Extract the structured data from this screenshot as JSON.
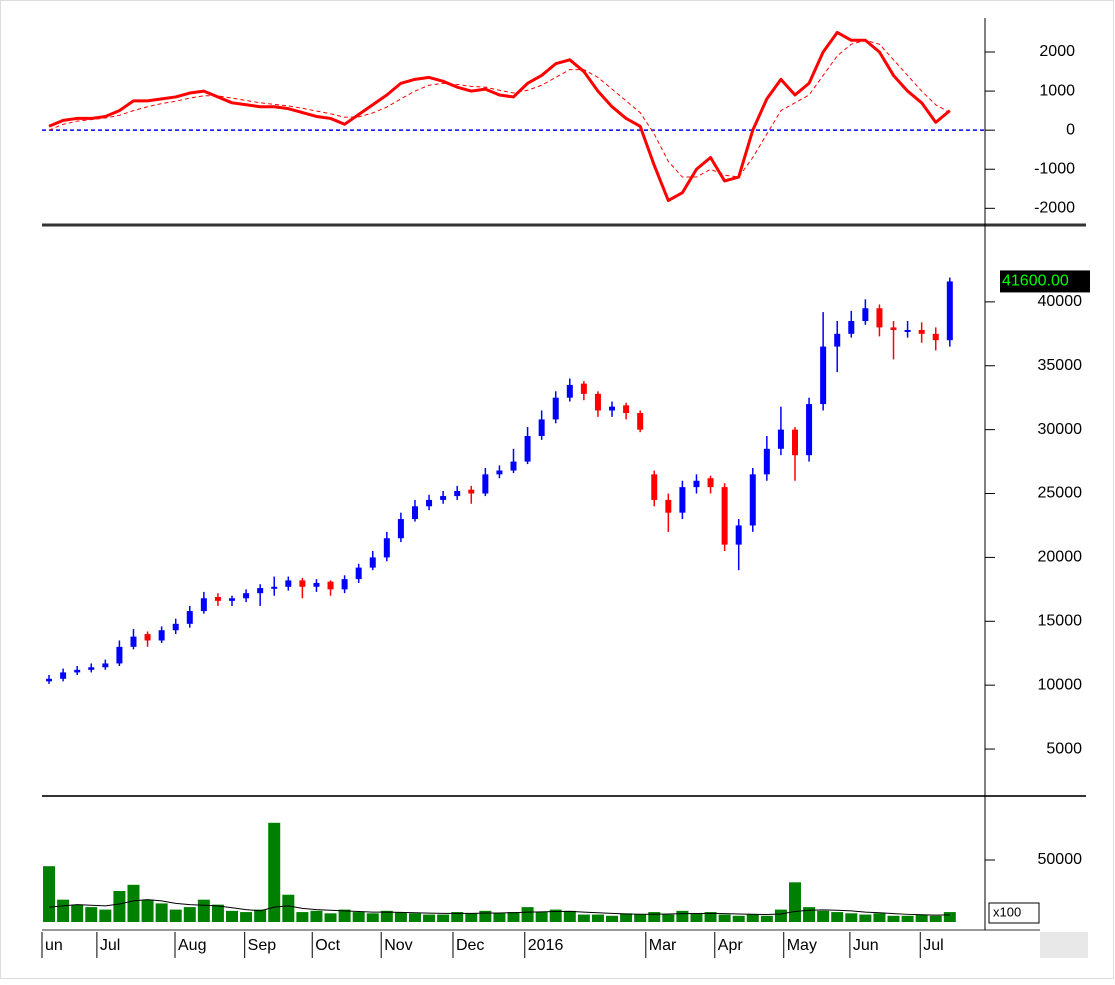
{
  "chart_data": [
    {
      "type": "line",
      "ylim": [
        -2350,
        2870
      ],
      "yticks": [
        -2000,
        -1000,
        0,
        1000,
        2000
      ],
      "hline": 0,
      "hline_color": "#0000ff",
      "series": [
        {
          "color": "#ff0000",
          "style": "solid",
          "values": [
            100,
            250,
            300,
            300,
            350,
            500,
            750,
            750,
            800,
            850,
            950,
            1000,
            850,
            700,
            650,
            600,
            600,
            550,
            450,
            350,
            300,
            150,
            400,
            650,
            900,
            1200,
            1300,
            1350,
            1250,
            1100,
            1000,
            1050,
            900,
            850,
            1200,
            1400,
            1700,
            1800,
            1500,
            1000,
            600,
            300,
            100,
            -900,
            -1800,
            -1600,
            -1000,
            -700,
            -1300,
            -1200,
            0,
            800,
            1300,
            900,
            1200,
            2000,
            2500,
            2300,
            2300,
            2000,
            1400,
            1000,
            700,
            200,
            500
          ]
        },
        {
          "color": "#ff0000",
          "style": "dashed",
          "values": [
            0,
            150,
            230,
            270,
            310,
            380,
            500,
            600,
            680,
            740,
            820,
            880,
            880,
            820,
            760,
            700,
            660,
            620,
            560,
            490,
            420,
            330,
            340,
            440,
            590,
            800,
            1000,
            1150,
            1200,
            1170,
            1120,
            1100,
            1020,
            950,
            1020,
            1150,
            1350,
            1550,
            1550,
            1350,
            1050,
            750,
            450,
            -100,
            -800,
            -1200,
            -1200,
            -1000,
            -1150,
            -1200,
            -700,
            -100,
            500,
            700,
            900,
            1400,
            1900,
            2200,
            2300,
            2200,
            1800,
            1400,
            1000,
            650,
            450
          ]
        }
      ]
    },
    {
      "type": "candlestick",
      "ylim": [
        1560,
        45860
      ],
      "yticks": [
        5000,
        10000,
        15000,
        20000,
        25000,
        30000,
        35000,
        40000
      ],
      "up_color": "#0000ff",
      "down_color": "#ff0000",
      "last_label": {
        "value": 41600,
        "label": "41600.00"
      },
      "open": [
        10300,
        10500,
        11000,
        11200,
        11400,
        11700,
        13000,
        14000,
        13500,
        14300,
        14800,
        15800,
        16900,
        16600,
        16800,
        17200,
        17600,
        17700,
        18200,
        17700,
        18100,
        17500,
        18300,
        19200,
        20000,
        21500,
        23000,
        24000,
        24500,
        24800,
        25300,
        25000,
        26500,
        26800,
        27500,
        29500,
        30800,
        32500,
        33600,
        32800,
        31500,
        31900,
        31300,
        26500,
        24500,
        23500,
        25500,
        26200,
        25500,
        21000,
        22500,
        26500,
        28500,
        30000,
        28000,
        32000,
        36500,
        37500,
        38500,
        39500,
        38000,
        37800,
        37800,
        37500,
        37000
      ],
      "high": [
        10800,
        11300,
        11500,
        11700,
        12000,
        13500,
        14400,
        14200,
        14600,
        15200,
        16200,
        17300,
        17200,
        17000,
        17500,
        17900,
        18500,
        18500,
        18400,
        18300,
        18200,
        18600,
        19500,
        20500,
        22000,
        23500,
        24500,
        24900,
        25200,
        25600,
        25600,
        27000,
        27200,
        28500,
        30200,
        31500,
        33000,
        34000,
        33800,
        33000,
        32200,
        32100,
        31500,
        26800,
        25000,
        26000,
        26500,
        26400,
        25800,
        23000,
        27000,
        29500,
        31800,
        30200,
        32500,
        39200,
        38500,
        39300,
        40200,
        39800,
        38500,
        38500,
        38400,
        38000,
        41900
      ],
      "low": [
        10100,
        10300,
        10800,
        11000,
        11200,
        11500,
        12800,
        13000,
        13300,
        14000,
        14500,
        15600,
        16200,
        16200,
        16500,
        16200,
        17000,
        17400,
        16800,
        17300,
        17000,
        17200,
        18000,
        19000,
        19700,
        21200,
        22800,
        23700,
        24200,
        24500,
        24200,
        24800,
        26200,
        26600,
        27300,
        29200,
        30500,
        32200,
        32300,
        31000,
        31000,
        30800,
        29800,
        24000,
        22000,
        23000,
        25000,
        25000,
        20500,
        19000,
        22000,
        26000,
        28000,
        26000,
        27500,
        31500,
        34500,
        37200,
        38200,
        37300,
        35500,
        37200,
        36800,
        36200,
        36500
      ],
      "close": [
        10500,
        11000,
        11200,
        11400,
        11700,
        13000,
        13800,
        13500,
        14300,
        14800,
        15800,
        16800,
        16600,
        16800,
        17200,
        17600,
        17700,
        18200,
        17700,
        18000,
        17500,
        18300,
        19200,
        20000,
        21500,
        23000,
        24000,
        24500,
        24800,
        25200,
        25000,
        26500,
        26800,
        27500,
        29500,
        30800,
        32500,
        33500,
        32800,
        31500,
        31800,
        31300,
        30000,
        24500,
        23500,
        25500,
        26000,
        25500,
        21000,
        22500,
        26500,
        28500,
        30000,
        28000,
        32000,
        36500,
        37500,
        38500,
        39500,
        38000,
        37800,
        37800,
        37500,
        37000,
        41600
      ]
    },
    {
      "type": "bar",
      "ylim": [
        0,
        100000
      ],
      "yticks": [
        50000
      ],
      "unit_label": "x100",
      "color": "#008000",
      "xlim": [
        -0.5,
        66.5
      ],
      "xticks": [
        {
          "value": -0.5,
          "label": "un"
        },
        {
          "value": 3.4,
          "label": "Jul"
        },
        {
          "value": 8.95,
          "label": "Aug"
        },
        {
          "value": 13.9,
          "label": "Sep"
        },
        {
          "value": 18.7,
          "label": "Oct"
        },
        {
          "value": 23.6,
          "label": "Nov"
        },
        {
          "value": 28.7,
          "label": "Dec"
        },
        {
          "value": 33.8,
          "label": "2016"
        },
        {
          "value": 42.4,
          "label": "Mar"
        },
        {
          "value": 47.3,
          "label": "Apr"
        },
        {
          "value": 52.2,
          "label": "May"
        },
        {
          "value": 56.9,
          "label": "Jun"
        },
        {
          "value": 61.9,
          "label": "Jul"
        }
      ],
      "values": [
        45000,
        18000,
        14000,
        12000,
        10000,
        25000,
        30000,
        18000,
        15000,
        10000,
        12000,
        18000,
        14000,
        9000,
        8000,
        10000,
        80000,
        22000,
        8000,
        9000,
        7000,
        10000,
        8000,
        7000,
        9000,
        8000,
        7000,
        6000,
        6000,
        8000,
        7000,
        9000,
        7000,
        8000,
        12000,
        8000,
        10000,
        9000,
        6000,
        6000,
        5000,
        7000,
        6000,
        8000,
        6000,
        9000,
        7000,
        8000,
        6000,
        5000,
        6000,
        5000,
        10000,
        32000,
        12000,
        9000,
        8000,
        7000,
        6000,
        7000,
        5000,
        5000,
        6000,
        5000,
        8000
      ],
      "line": {
        "color": "#000000",
        "values": [
          12000,
          13000,
          14000,
          13500,
          13000,
          14500,
          17000,
          18000,
          17000,
          15000,
          14000,
          13500,
          13000,
          11500,
          10000,
          9000,
          12000,
          13000,
          11000,
          10000,
          9500,
          9000,
          8500,
          8000,
          8000,
          7800,
          7500,
          7200,
          7000,
          7000,
          7000,
          7200,
          7300,
          7500,
          8000,
          8200,
          8500,
          8600,
          8000,
          7500,
          7000,
          6500,
          6300,
          6300,
          6500,
          6800,
          6900,
          7000,
          6800,
          6500,
          6200,
          6000,
          6500,
          8500,
          9500,
          9800,
          9500,
          9000,
          8000,
          7500,
          6800,
          6200,
          5800,
          5500,
          5700
        ]
      }
    }
  ]
}
